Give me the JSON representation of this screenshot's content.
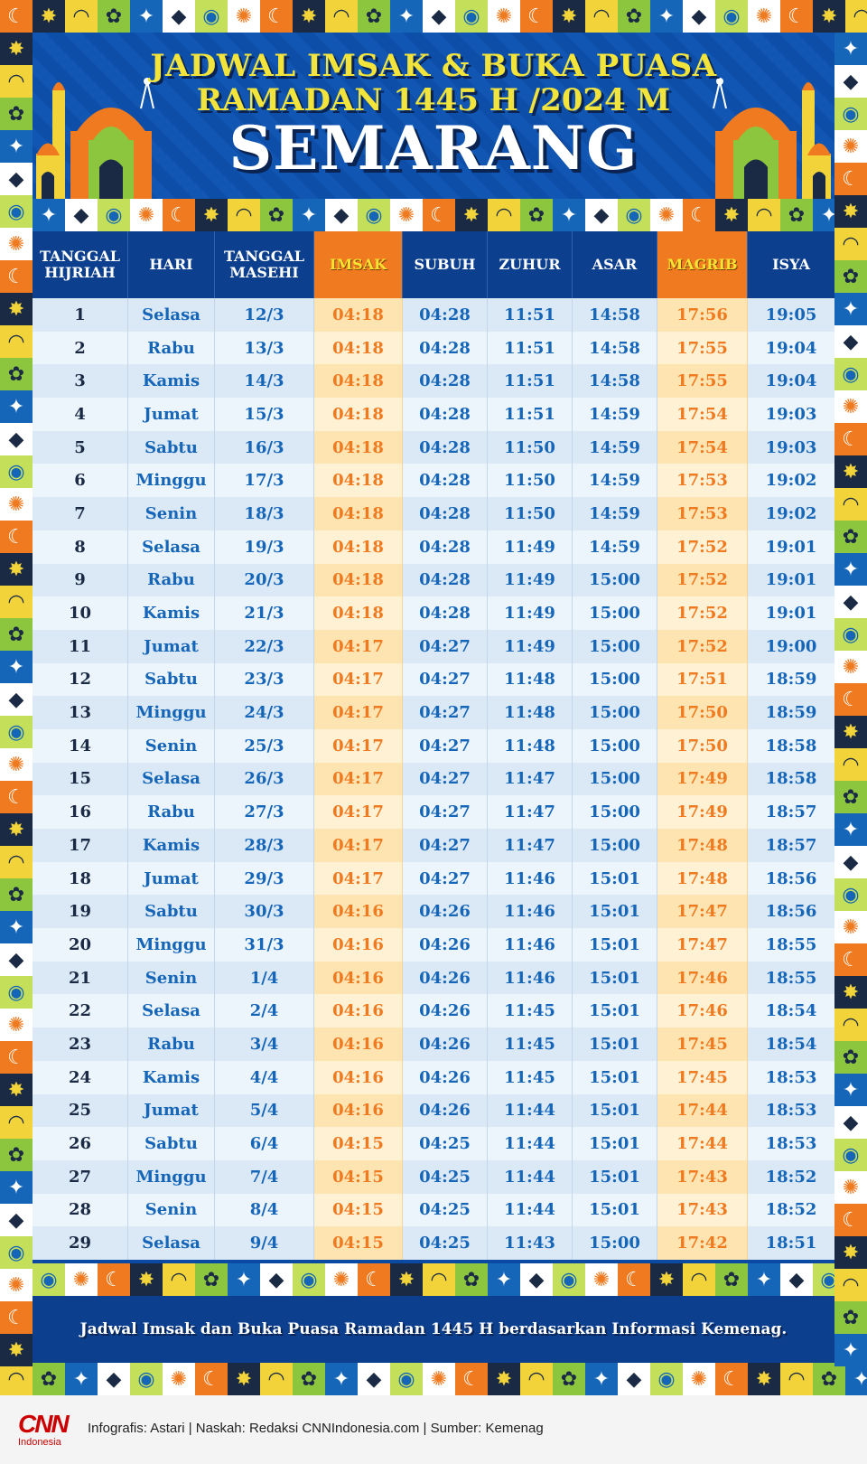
{
  "title": {
    "line1": "JADWAL IMSAK & BUKA PUASA",
    "line2": "RAMADAN 1445 H /2024 M",
    "city": "SEMARANG"
  },
  "table": {
    "headers": [
      "TANGGAL HIJRIAH",
      "HARI",
      "TANGGAL MASEHI",
      "IMSAK",
      "SUBUH",
      "ZUHUR",
      "ASAR",
      "MAGRIB",
      "ISYA"
    ],
    "highlight_columns": [
      "IMSAK",
      "MAGRIB"
    ],
    "rows": [
      [
        "1",
        "Selasa",
        "12/3",
        "04:18",
        "04:28",
        "11:51",
        "14:58",
        "17:56",
        "19:05"
      ],
      [
        "2",
        "Rabu",
        "13/3",
        "04:18",
        "04:28",
        "11:51",
        "14:58",
        "17:55",
        "19:04"
      ],
      [
        "3",
        "Kamis",
        "14/3",
        "04:18",
        "04:28",
        "11:51",
        "14:58",
        "17:55",
        "19:04"
      ],
      [
        "4",
        "Jumat",
        "15/3",
        "04:18",
        "04:28",
        "11:51",
        "14:59",
        "17:54",
        "19:03"
      ],
      [
        "5",
        "Sabtu",
        "16/3",
        "04:18",
        "04:28",
        "11:50",
        "14:59",
        "17:54",
        "19:03"
      ],
      [
        "6",
        "Minggu",
        "17/3",
        "04:18",
        "04:28",
        "11:50",
        "14:59",
        "17:53",
        "19:02"
      ],
      [
        "7",
        "Senin",
        "18/3",
        "04:18",
        "04:28",
        "11:50",
        "14:59",
        "17:53",
        "19:02"
      ],
      [
        "8",
        "Selasa",
        "19/3",
        "04:18",
        "04:28",
        "11:49",
        "14:59",
        "17:52",
        "19:01"
      ],
      [
        "9",
        "Rabu",
        "20/3",
        "04:18",
        "04:28",
        "11:49",
        "15:00",
        "17:52",
        "19:01"
      ],
      [
        "10",
        "Kamis",
        "21/3",
        "04:18",
        "04:28",
        "11:49",
        "15:00",
        "17:52",
        "19:01"
      ],
      [
        "11",
        "Jumat",
        "22/3",
        "04:17",
        "04:27",
        "11:49",
        "15:00",
        "17:52",
        "19:00"
      ],
      [
        "12",
        "Sabtu",
        "23/3",
        "04:17",
        "04:27",
        "11:48",
        "15:00",
        "17:51",
        "18:59"
      ],
      [
        "13",
        "Minggu",
        "24/3",
        "04:17",
        "04:27",
        "11:48",
        "15:00",
        "17:50",
        "18:59"
      ],
      [
        "14",
        "Senin",
        "25/3",
        "04:17",
        "04:27",
        "11:48",
        "15:00",
        "17:50",
        "18:58"
      ],
      [
        "15",
        "Selasa",
        "26/3",
        "04:17",
        "04:27",
        "11:47",
        "15:00",
        "17:49",
        "18:58"
      ],
      [
        "16",
        "Rabu",
        "27/3",
        "04:17",
        "04:27",
        "11:47",
        "15:00",
        "17:49",
        "18:57"
      ],
      [
        "17",
        "Kamis",
        "28/3",
        "04:17",
        "04:27",
        "11:47",
        "15:00",
        "17:48",
        "18:57"
      ],
      [
        "18",
        "Jumat",
        "29/3",
        "04:17",
        "04:27",
        "11:46",
        "15:01",
        "17:48",
        "18:56"
      ],
      [
        "19",
        "Sabtu",
        "30/3",
        "04:16",
        "04:26",
        "11:46",
        "15:01",
        "17:47",
        "18:56"
      ],
      [
        "20",
        "Minggu",
        "31/3",
        "04:16",
        "04:26",
        "11:46",
        "15:01",
        "17:47",
        "18:55"
      ],
      [
        "21",
        "Senin",
        "1/4",
        "04:16",
        "04:26",
        "11:46",
        "15:01",
        "17:46",
        "18:55"
      ],
      [
        "22",
        "Selasa",
        "2/4",
        "04:16",
        "04:26",
        "11:45",
        "15:01",
        "17:46",
        "18:54"
      ],
      [
        "23",
        "Rabu",
        "3/4",
        "04:16",
        "04:26",
        "11:45",
        "15:01",
        "17:45",
        "18:54"
      ],
      [
        "24",
        "Kamis",
        "4/4",
        "04:16",
        "04:26",
        "11:45",
        "15:01",
        "17:45",
        "18:53"
      ],
      [
        "25",
        "Jumat",
        "5/4",
        "04:16",
        "04:26",
        "11:44",
        "15:01",
        "17:44",
        "18:53"
      ],
      [
        "26",
        "Sabtu",
        "6/4",
        "04:15",
        "04:25",
        "11:44",
        "15:01",
        "17:44",
        "18:53"
      ],
      [
        "27",
        "Minggu",
        "7/4",
        "04:15",
        "04:25",
        "11:44",
        "15:01",
        "17:43",
        "18:52"
      ],
      [
        "28",
        "Senin",
        "8/4",
        "04:15",
        "04:25",
        "11:44",
        "15:01",
        "17:43",
        "18:52"
      ],
      [
        "29",
        "Selasa",
        "9/4",
        "04:15",
        "04:25",
        "11:43",
        "15:00",
        "17:42",
        "18:51"
      ]
    ]
  },
  "note": "Jadwal Imsak dan Buka Puasa Ramadan 1445 H berdasarkan Informasi Kemenag.",
  "footer": {
    "logo_text": "CNN",
    "logo_sub": "Indonesia",
    "credit": "Infografis: Astari | Naskah: Redaksi CNNIndonesia.com | Sumber: Kemenag"
  },
  "colors": {
    "background_blue": "#0b4aa2",
    "header_blue": "#0c3f8e",
    "title_yellow": "#f2e43a",
    "accent_orange": "#f07a1f",
    "text_blue": "#1565b8",
    "logo_red": "#cc0000"
  },
  "border_icons": [
    "crescent-icon",
    "star-icon",
    "mosque-dome-icon",
    "palm-icon",
    "diamond-icon",
    "lantern-icon"
  ]
}
